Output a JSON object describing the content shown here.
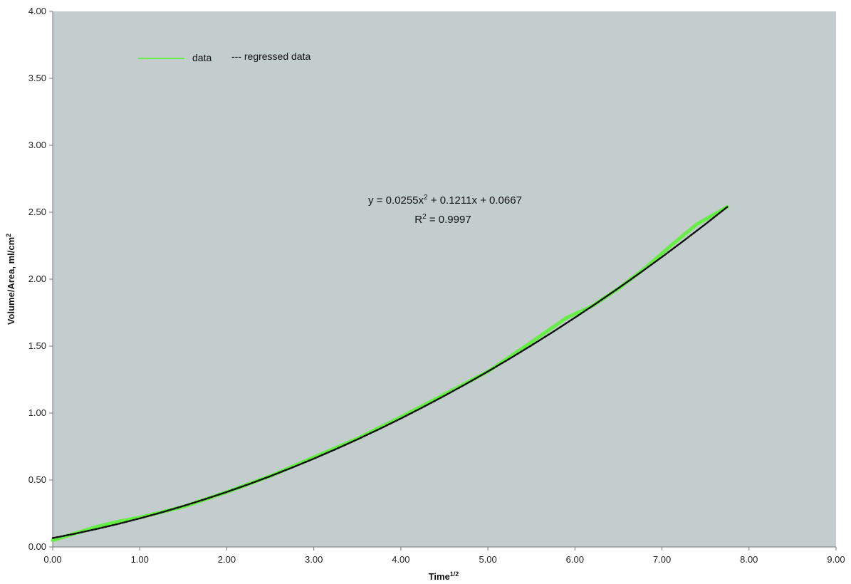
{
  "chart_data": {
    "type": "line",
    "xlabel": "Time",
    "xlabel_sup": "1/2",
    "ylabel": "Volume/Area, ml/cm",
    "ylabel_sup": "2",
    "xlim": [
      0,
      9
    ],
    "ylim": [
      0,
      4
    ],
    "x_ticks": [
      "0.00",
      "1.00",
      "2.00",
      "3.00",
      "4.00",
      "5.00",
      "6.00",
      "7.00",
      "8.00",
      "9.00"
    ],
    "y_ticks": [
      "0.00",
      "0.50",
      "1.00",
      "1.50",
      "2.00",
      "2.50",
      "3.00",
      "3.50",
      "4.00"
    ],
    "grid": false,
    "plot_background": "#c3cdcd",
    "legend": {
      "placement": "top-left",
      "items": [
        {
          "label": "data",
          "style": "solid",
          "color": "#66ee44"
        },
        {
          "label": "--- regressed data",
          "style": "dashed",
          "color": "#111111"
        }
      ]
    },
    "annotation": {
      "eq_prefix": "y = 0.0255x",
      "eq_sup": "2",
      "eq_suffix": " + 0.1211x + 0.0667",
      "r2_prefix": "R",
      "r2_sup": "2",
      "r2_suffix": " = 0.9997"
    },
    "series": [
      {
        "name": "data",
        "color": "#66ee44",
        "x": [
          0.0,
          0.25,
          0.5,
          0.75,
          1.0,
          1.5,
          2.0,
          2.5,
          3.0,
          3.5,
          4.0,
          4.5,
          5.0,
          5.5,
          5.9,
          6.2,
          6.5,
          6.8,
          7.1,
          7.4,
          7.75
        ],
        "y": [
          0.05,
          0.1,
          0.15,
          0.19,
          0.22,
          0.3,
          0.41,
          0.53,
          0.67,
          0.81,
          0.97,
          1.14,
          1.31,
          1.53,
          1.71,
          1.8,
          1.93,
          2.08,
          2.25,
          2.41,
          2.54
        ]
      },
      {
        "name": "regressed data",
        "color": "#111111",
        "x": [
          0.0,
          0.25,
          0.5,
          0.75,
          1.0,
          1.25,
          1.5,
          1.75,
          2.0,
          2.25,
          2.5,
          2.75,
          3.0,
          3.25,
          3.5,
          3.75,
          4.0,
          4.25,
          4.5,
          4.75,
          5.0,
          5.25,
          5.5,
          5.75,
          6.0,
          6.25,
          6.5,
          6.75,
          7.0,
          7.25,
          7.5,
          7.75
        ],
        "y": [
          0.0667,
          0.0986,
          0.1336,
          0.1718,
          0.2133,
          0.2579,
          0.3057,
          0.3567,
          0.4109,
          0.4683,
          0.5289,
          0.5927,
          0.6597,
          0.7298,
          0.8032,
          0.8797,
          0.9595,
          1.0425,
          1.1286,
          1.218,
          1.3105,
          1.4063,
          1.5052,
          1.6073,
          1.7127,
          1.8212,
          1.9329,
          2.0478,
          2.1659,
          2.2873,
          2.4118,
          2.5395
        ]
      }
    ]
  }
}
